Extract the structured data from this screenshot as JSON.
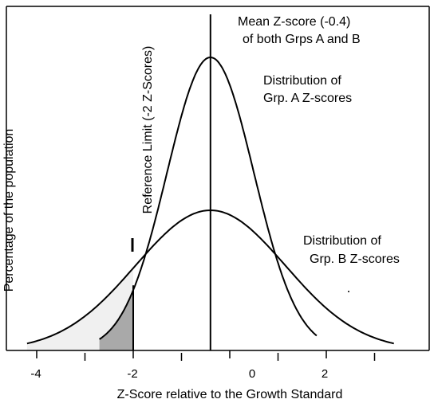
{
  "chart_data": {
    "type": "line",
    "title": "",
    "xlabel": "Z-Score relative to the Growth Standard",
    "ylabel": "Percentage of the population",
    "xlim": [
      -4.8,
      3.7
    ],
    "ylim": [
      0,
      1
    ],
    "x_ticks_major": [
      -4,
      -2,
      0,
      2
    ],
    "x_ticks_minor": [
      -3,
      -1,
      1,
      3
    ],
    "x_tick_labels": [
      "-4",
      "-2",
      "0",
      "2"
    ],
    "series": [
      {
        "name": "Grp. A",
        "mean": -0.4,
        "sd": 0.9,
        "x_range": [
          -2.7,
          1.8
        ],
        "peak": 0.92
      },
      {
        "name": "Grp. B",
        "mean": -0.4,
        "sd": 1.55,
        "x_range": [
          -4.2,
          3.4
        ],
        "peak": 0.44
      }
    ],
    "reference_limit": -2,
    "mean_value": -0.4,
    "annotations": [
      {
        "id": "mean",
        "lines": [
          "Mean Z-score (-0.4)",
          "of both Grps A and B"
        ]
      },
      {
        "id": "dist-a",
        "lines": [
          "Distribution of",
          "Grp. A  Z-scores"
        ]
      },
      {
        "id": "dist-b",
        "lines": [
          "Distribution of",
          "Grp. B  Z-scores"
        ]
      },
      {
        "id": "ref-limit",
        "lines": [
          "Reference Limit (-2 Z-Scores)"
        ]
      }
    ],
    "fill_colors": {
      "grp_b_below_limit": "#f0f0f0",
      "grp_a_below_limit": "#a9a9a9"
    },
    "line_color": "#000000",
    "grid": false
  }
}
